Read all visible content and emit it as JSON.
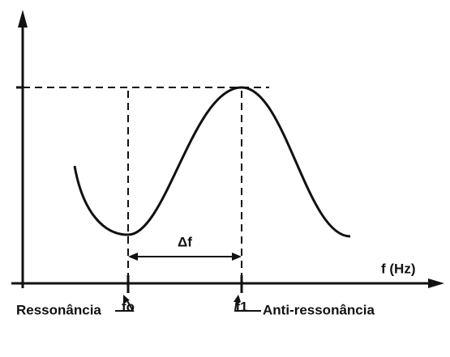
{
  "axis_label": "f (Hz)",
  "markers": [
    {
      "label": "fo",
      "caption": "Ressonância"
    },
    {
      "label": "f1",
      "caption": "Anti-ressonância"
    }
  ],
  "interval_label": "Δf"
}
